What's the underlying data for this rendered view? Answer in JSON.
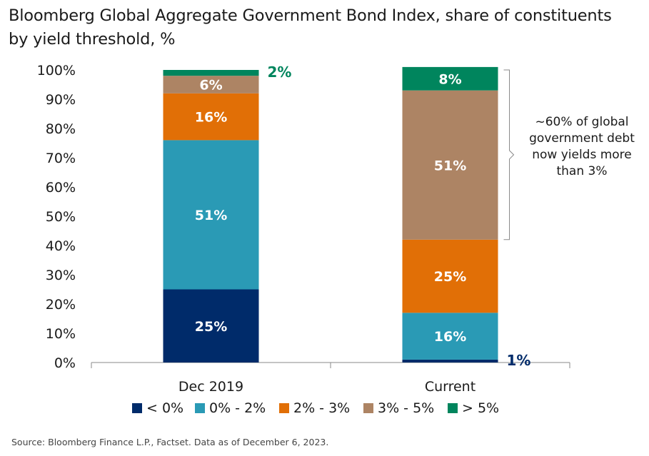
{
  "title_line1": "Bloomberg Global Aggregate Government Bond Index, share of constituents",
  "title_line2": "by yield threshold, %",
  "source": "Source: Bloomberg Finance L.P., Factset. Data as of December 6, 2023.",
  "chart_data": {
    "type": "bar",
    "stacked": true,
    "categories": [
      "Dec 2019",
      "Current"
    ],
    "series": [
      {
        "name": "< 0%",
        "color": "#002b6a",
        "values": [
          25,
          1
        ],
        "labels": [
          "25%",
          "1%"
        ]
      },
      {
        "name": "0% - 2%",
        "color": "#2a9ab5",
        "values": [
          51,
          16
        ],
        "labels": [
          "51%",
          "16%"
        ]
      },
      {
        "name": "2% - 3%",
        "color": "#e16f06",
        "values": [
          16,
          25
        ],
        "labels": [
          "16%",
          "25%"
        ]
      },
      {
        "name": "3% - 5%",
        "color": "#ad8464",
        "values": [
          6,
          51
        ],
        "labels": [
          "6%",
          "51%"
        ]
      },
      {
        "name": "> 5%",
        "color": "#00855d",
        "values": [
          2,
          8
        ],
        "labels": [
          "2%",
          "8%"
        ]
      }
    ],
    "ylim": [
      0,
      100
    ],
    "yticks": [
      "0%",
      "10%",
      "20%",
      "30%",
      "40%",
      "50%",
      "60%",
      "70%",
      "80%",
      "90%",
      "100%"
    ],
    "legend_position": "bottom",
    "annotation": [
      "~60% of global",
      "government debt",
      "now yields more",
      "than 3%"
    ]
  }
}
